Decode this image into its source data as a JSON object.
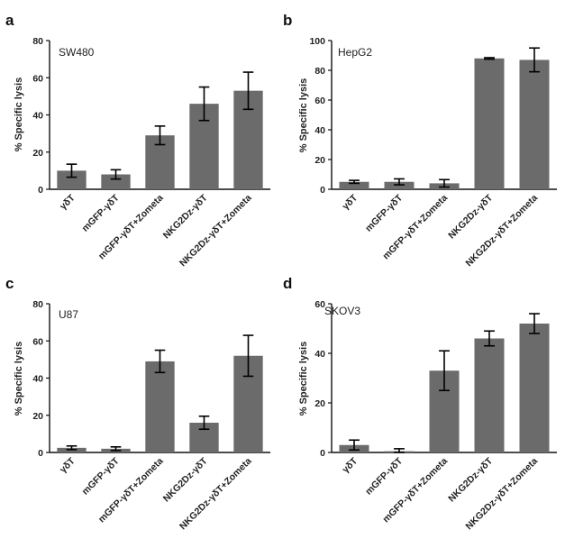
{
  "colors": {
    "bar": "#6b6b6b",
    "axis": "#111111",
    "error": "#000000"
  },
  "chart_data": [
    {
      "panel": "a",
      "type": "bar",
      "title": "SW480",
      "ylabel": "% Specific lysis",
      "ylim": [
        0,
        80
      ],
      "yticks": [
        "0",
        "20",
        "40",
        "60",
        "80"
      ],
      "categories": [
        "γδT",
        "mGFP-γδT",
        "mGFP-γδT+Zometa",
        "NKG2Dz-γδT",
        "NKG2Dz-γδT+Zometa"
      ],
      "values": [
        10,
        8,
        29,
        46,
        53
      ],
      "errors": [
        3.5,
        2.5,
        5,
        9,
        10
      ]
    },
    {
      "panel": "b",
      "type": "bar",
      "title": "HepG2",
      "ylabel": "% Specific lysis",
      "ylim": [
        0,
        100
      ],
      "yticks": [
        "0",
        "20",
        "40",
        "60",
        "80",
        "100"
      ],
      "categories": [
        "γδT",
        "mGFP-γδT",
        "mGFP-γδT+Zometa",
        "NKG2Dz-γδT",
        "NKG2Dz-γδT+Zometa"
      ],
      "values": [
        5,
        5,
        4,
        88,
        87
      ],
      "errors": [
        1,
        2,
        2.5,
        0.5,
        8
      ]
    },
    {
      "panel": "c",
      "type": "bar",
      "title": "U87",
      "ylabel": "% Specific lysis",
      "ylim": [
        0,
        80
      ],
      "yticks": [
        "0",
        "20",
        "40",
        "60",
        "80"
      ],
      "categories": [
        "γδT",
        "mGFP-γδT",
        "mGFP-γδT+Zometa",
        "NKG2Dz-γδT",
        "NKG2Dz-γδT+Zometa"
      ],
      "values": [
        2.5,
        2,
        49,
        16,
        52
      ],
      "errors": [
        1,
        1,
        6,
        3.5,
        11
      ]
    },
    {
      "panel": "d",
      "type": "bar",
      "title": "SKOV3",
      "ylabel": "% Specific lysis",
      "ylim": [
        0,
        60
      ],
      "yticks": [
        "0",
        "20",
        "40",
        "60"
      ],
      "categories": [
        "γδT",
        "mGFP-γδT",
        "mGFP-γδT+Zometa",
        "NKG2Dz-γδT",
        "NKG2Dz-γδT+Zometa"
      ],
      "values": [
        3,
        0.5,
        33,
        46,
        52
      ],
      "errors": [
        2,
        1,
        8,
        3,
        4
      ]
    }
  ]
}
